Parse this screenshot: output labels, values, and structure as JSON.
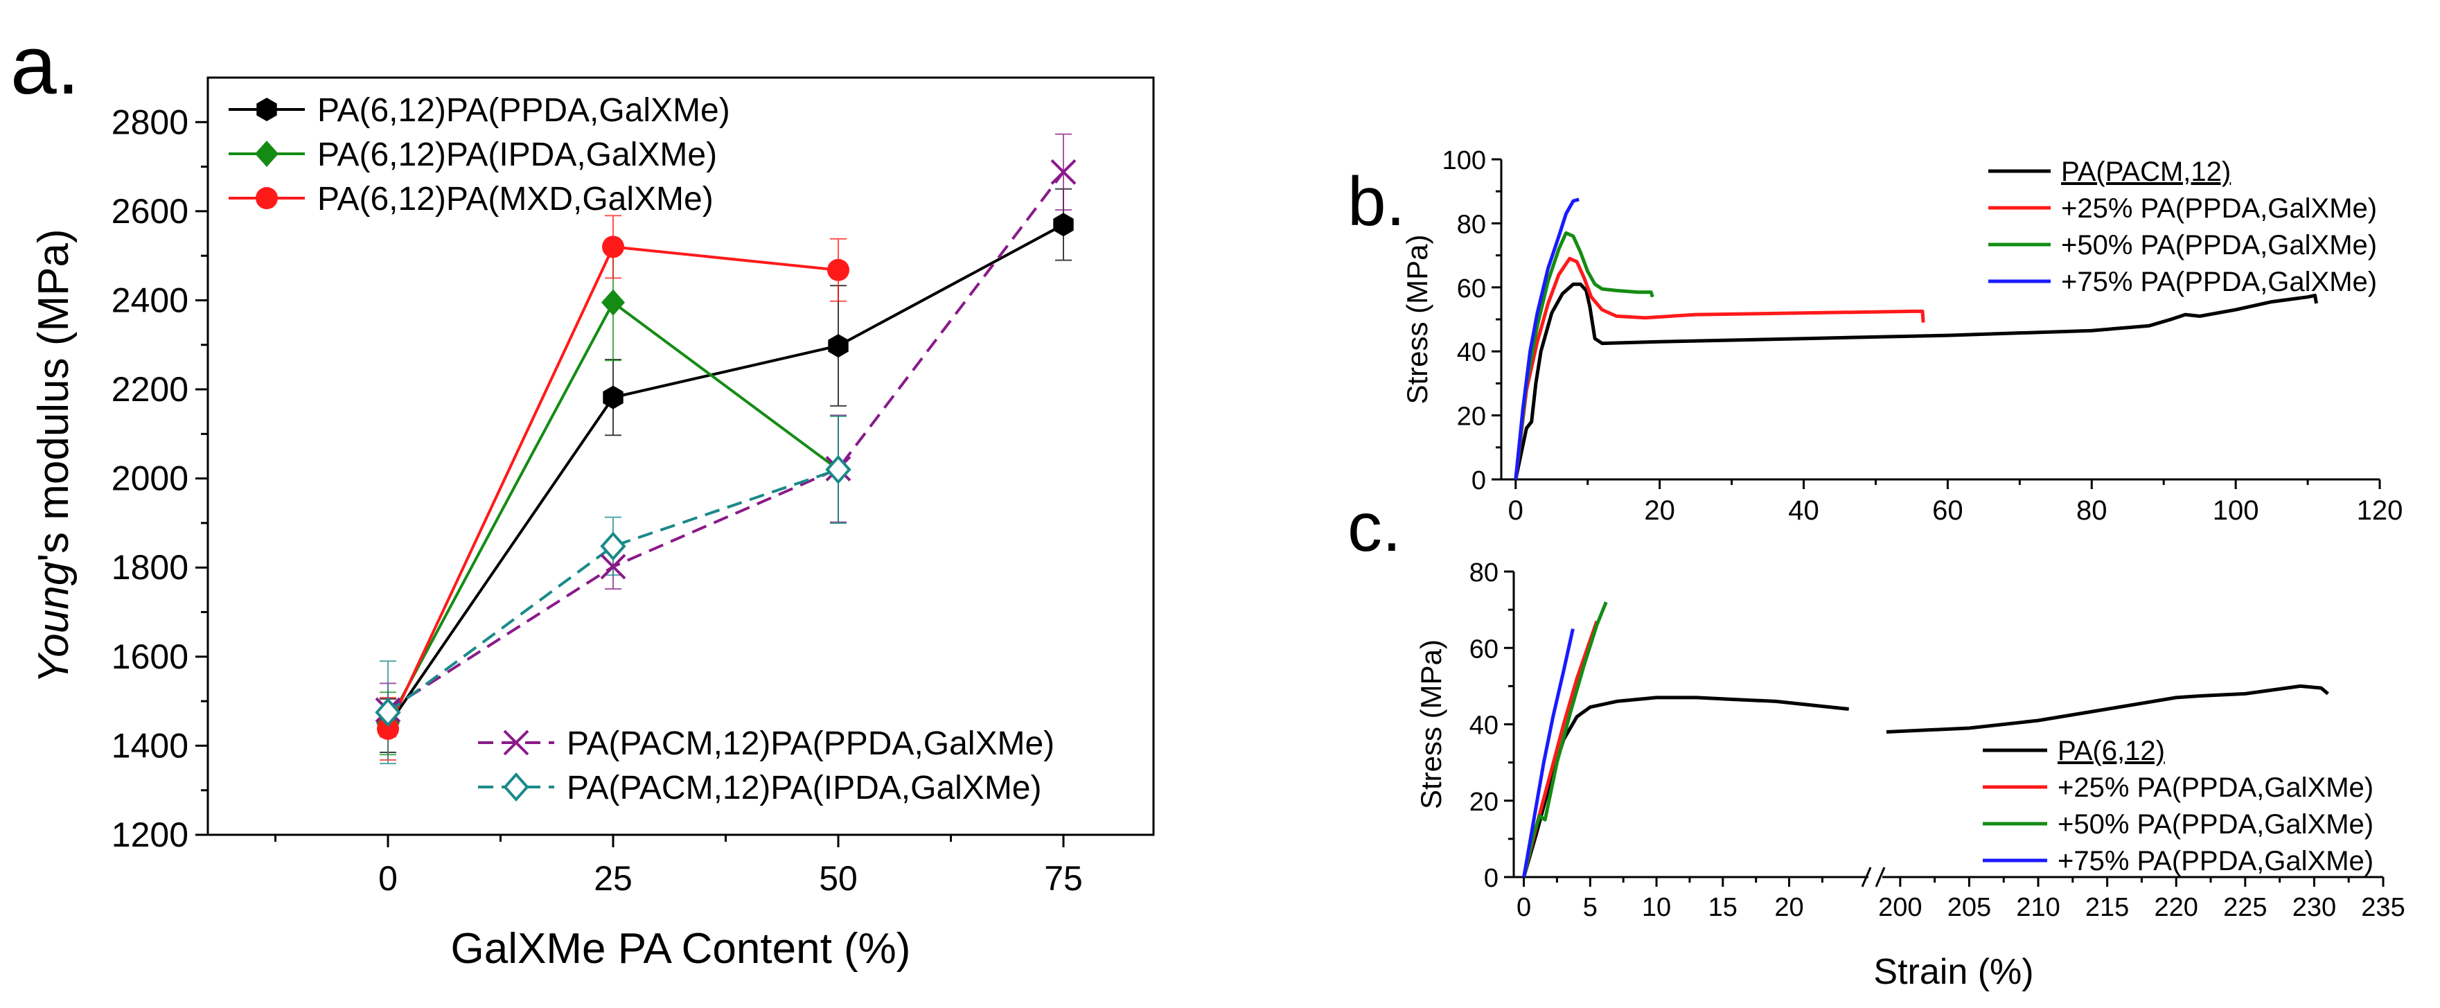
{
  "figure": {
    "panel_labels": [
      "a.",
      "b.",
      "c."
    ]
  },
  "colors": {
    "black": "#000000",
    "green": "#148c14",
    "red": "#ff1a1a",
    "purple": "#8a1a8a",
    "teal": "#1a8a8a",
    "blue": "#1a1aff"
  },
  "chart_data": [
    {
      "id": "a",
      "type": "line",
      "title": "",
      "xlabel": "GalXMe PA Content (%)",
      "ylabel_italic": "Young",
      "ylabel_rest": "'s modulus (MPa)",
      "xlim": [
        -20,
        85
      ],
      "ylim": [
        1200,
        2900
      ],
      "xticks": [
        0,
        25,
        50,
        75
      ],
      "yticks": [
        1200,
        1400,
        1600,
        1800,
        2000,
        2200,
        2400,
        2600,
        2800
      ],
      "legend_top": [
        "PA(6,12)PA(PPDA,GalXMe)",
        "PA(6,12)PA(IPDA,GalXMe)",
        "PA(6,12)PA(MXD,GalXMe)"
      ],
      "legend_bottom": [
        "PA(PACM,12)PA(PPDA,GalXMe)",
        "PA(PACM,12)PA(IPDA,GalXMe)"
      ],
      "series": [
        {
          "name": "PA(6,12)PA(PPDA,GalXMe)",
          "color": "black",
          "marker": "hexagon",
          "dash": false,
          "x": [
            0,
            25,
            50,
            75
          ],
          "y": [
            1445,
            2182,
            2298,
            2570
          ],
          "err": [
            60,
            85,
            135,
            80
          ]
        },
        {
          "name": "PA(6,12)PA(IPDA,GalXMe)",
          "color": "green",
          "marker": "diamond",
          "dash": false,
          "x": [
            0,
            25,
            50
          ],
          "y": [
            1450,
            2395,
            2020
          ],
          "err": [
            70,
            130,
            120
          ]
        },
        {
          "name": "PA(6,12)PA(MXD,GalXMe)",
          "color": "red",
          "marker": "circle",
          "dash": false,
          "x": [
            0,
            25,
            50
          ],
          "y": [
            1438,
            2520,
            2468
          ],
          "err": [
            70,
            70,
            70
          ]
        },
        {
          "name": "PA(PACM,12)PA(PPDA,GalXMe)",
          "color": "purple",
          "marker": "x",
          "dash": true,
          "x": [
            0,
            25,
            50,
            75
          ],
          "y": [
            1480,
            1802,
            2022,
            2688
          ],
          "err": [
            60,
            50,
            120,
            85
          ]
        },
        {
          "name": "PA(PACM,12)PA(IPDA,GalXMe)",
          "color": "teal",
          "marker": "open-diamond",
          "dash": true,
          "x": [
            0,
            25,
            50
          ],
          "y": [
            1475,
            1848,
            2020
          ],
          "err": [
            115,
            65,
            120
          ]
        }
      ]
    },
    {
      "id": "b",
      "type": "line",
      "xlabel": "",
      "ylabel": "Stress (MPa)",
      "xlim": [
        -2,
        120
      ],
      "ylim": [
        0,
        100
      ],
      "xticks": [
        0,
        20,
        40,
        60,
        80,
        100,
        120
      ],
      "yticks": [
        0,
        20,
        40,
        60,
        80,
        100
      ],
      "legend": [
        "PA(PACM,12)",
        "+25% PA(PPDA,GalXMe)",
        "+50% PA(PPDA,GalXMe)",
        "+75% PA(PPDA,GalXMe)"
      ],
      "series": [
        {
          "name": "PA(PACM,12)",
          "color": "black",
          "x": [
            0,
            1.5,
            2.2,
            2.8,
            3.5,
            5,
            6.5,
            8,
            9,
            9.8,
            10.3,
            11,
            12,
            20,
            40,
            60,
            80,
            88,
            91,
            93,
            95,
            100,
            105,
            110,
            111,
            111.2
          ],
          "y": [
            0,
            16,
            18,
            30,
            40,
            52,
            58,
            61,
            61,
            59,
            54,
            44,
            42.5,
            43,
            44,
            45,
            46.5,
            48,
            50,
            51.5,
            51,
            53,
            55.5,
            57,
            57.5,
            55
          ]
        },
        {
          "name": "+25% PA(PPDA,GalXMe)",
          "color": "red",
          "x": [
            0,
            1.5,
            3,
            4.5,
            6,
            7.5,
            8.5,
            9.5,
            10.5,
            12,
            14,
            18,
            25,
            40,
            55,
            56.5,
            56.6
          ],
          "y": [
            0,
            28,
            43,
            55,
            64,
            69,
            68,
            63,
            57,
            53,
            51,
            50.5,
            51.5,
            52,
            52.5,
            52.5,
            49
          ]
        },
        {
          "name": "+50% PA(PPDA,GalXMe)",
          "color": "green",
          "x": [
            0,
            1.5,
            3,
            4.5,
            6,
            7,
            8,
            9,
            10,
            11,
            12,
            14,
            17,
            18.8,
            19
          ],
          "y": [
            0,
            30,
            48,
            62,
            72,
            77,
            76,
            71,
            65,
            61,
            59.5,
            59,
            58.5,
            58.5,
            57
          ]
        },
        {
          "name": "+75% PA(PPDA,GalXMe)",
          "color": "blue",
          "x": [
            0,
            1,
            2,
            3,
            4.5,
            6,
            7,
            8,
            8.8
          ],
          "y": [
            0,
            22,
            40,
            52,
            66,
            76,
            83,
            87,
            87.5
          ]
        }
      ]
    },
    {
      "id": "c",
      "type": "line",
      "xlabel": "Strain (%)",
      "ylabel": "Stress (MPa)",
      "ylim": [
        0,
        80
      ],
      "broken_axis": {
        "segment1": [
          -0.5,
          26.5
        ],
        "segment2": [
          198,
          235
        ]
      },
      "xticks": [
        0,
        5,
        10,
        15,
        20,
        200,
        205,
        210,
        215,
        220,
        225,
        230,
        235
      ],
      "yticks": [
        0,
        20,
        40,
        60,
        80
      ],
      "legend": [
        "PA(6,12)",
        "+25% PA(PPDA,GalXMe)",
        "+50% PA(PPDA,GalXMe)",
        "+75% PA(PPDA,GalXMe)"
      ],
      "series": [
        {
          "name": "PA(6,12)",
          "color": "black",
          "seg1": {
            "x": [
              0,
              1,
              2,
              3,
              4,
              5,
              7,
              10,
              13,
              16,
              19,
              24.5
            ],
            "y": [
              0,
              12,
              25,
              36,
              42,
              44.5,
              46,
              47,
              47,
              46.5,
              46,
              44
            ]
          },
          "seg2": {
            "x": [
              199,
              205,
              210,
              215,
              220,
              222,
              225,
              229,
              230.5,
              231
            ],
            "y": [
              38,
              39,
              41,
              44,
              47,
              47.5,
              48,
              50,
              49.5,
              48
            ]
          }
        },
        {
          "name": "+25% PA(PPDA,GalXMe)",
          "color": "red",
          "x": [
            0,
            1,
            2,
            3,
            4,
            5,
            5.5
          ],
          "y": [
            0,
            14,
            27,
            40,
            52,
            62,
            67
          ]
        },
        {
          "name": "+50% PA(PPDA,GalXMe)",
          "color": "green",
          "x": [
            0,
            0.8,
            1.2,
            1.6,
            2.5,
            3.5,
            4.5,
            5.5,
            6.2
          ],
          "y": [
            0,
            12,
            16,
            15,
            30,
            43,
            55,
            66,
            72
          ]
        },
        {
          "name": "+75% PA(PPDA,GalXMe)",
          "color": "blue",
          "x": [
            0,
            0.8,
            1.5,
            2.2,
            3,
            3.7
          ],
          "y": [
            0,
            16,
            30,
            42,
            54,
            65
          ]
        }
      ]
    }
  ]
}
